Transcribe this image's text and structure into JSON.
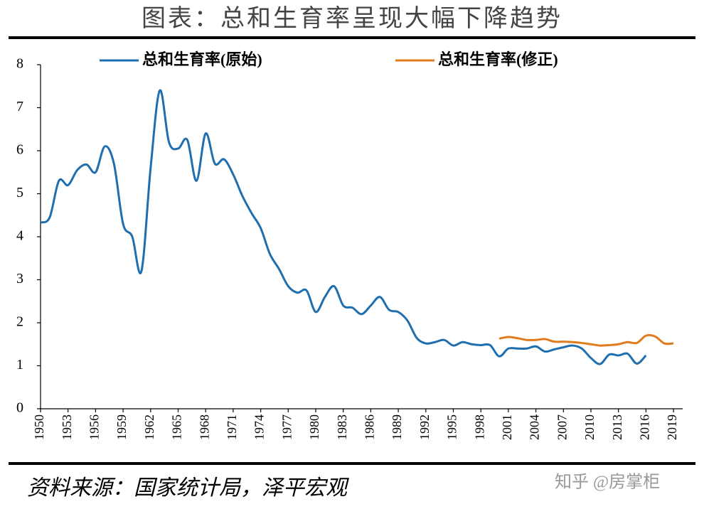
{
  "chart_data": {
    "type": "line",
    "title": "图表：总和生育率呈现大幅下降趋势",
    "source": "资料来源：国家统计局，泽平宏观",
    "watermark": "知乎 @房掌柜",
    "x": [
      1950,
      1951,
      1952,
      1953,
      1954,
      1955,
      1956,
      1957,
      1958,
      1959,
      1960,
      1961,
      1962,
      1963,
      1964,
      1965,
      1966,
      1967,
      1968,
      1969,
      1970,
      1971,
      1972,
      1973,
      1974,
      1975,
      1976,
      1977,
      1978,
      1979,
      1980,
      1981,
      1982,
      1983,
      1984,
      1985,
      1986,
      1987,
      1988,
      1989,
      1990,
      1991,
      1992,
      1993,
      1994,
      1995,
      1996,
      1997,
      1998,
      1999,
      2000,
      2001,
      2002,
      2003,
      2004,
      2005,
      2006,
      2007,
      2008,
      2009,
      2010,
      2011,
      2012,
      2013,
      2014,
      2015,
      2016,
      2017,
      2018,
      2019
    ],
    "series": [
      {
        "name": "总和生育率(原始)",
        "color": "#1f6fb0",
        "values": [
          4.33,
          4.45,
          5.3,
          5.2,
          5.55,
          5.68,
          5.5,
          6.1,
          5.7,
          4.3,
          4.0,
          3.2,
          5.6,
          7.4,
          6.2,
          6.05,
          6.25,
          5.3,
          6.4,
          5.7,
          5.8,
          5.45,
          4.95,
          4.55,
          4.2,
          3.6,
          3.25,
          2.85,
          2.7,
          2.75,
          2.25,
          2.6,
          2.85,
          2.4,
          2.35,
          2.2,
          2.4,
          2.6,
          2.3,
          2.25,
          2.05,
          1.65,
          1.52,
          1.55,
          1.6,
          1.47,
          1.55,
          1.5,
          1.48,
          1.48,
          1.22,
          1.4,
          1.4,
          1.4,
          1.45,
          1.33,
          1.38,
          1.43,
          1.47,
          1.4,
          1.18,
          1.04,
          1.26,
          1.24,
          1.28,
          1.05,
          1.24,
          null,
          null,
          null
        ]
      },
      {
        "name": "总和生育率(修正)",
        "color": "#e07c1e",
        "values": [
          null,
          null,
          null,
          null,
          null,
          null,
          null,
          null,
          null,
          null,
          null,
          null,
          null,
          null,
          null,
          null,
          null,
          null,
          null,
          null,
          null,
          null,
          null,
          null,
          null,
          null,
          null,
          null,
          null,
          null,
          null,
          null,
          null,
          null,
          null,
          null,
          null,
          null,
          null,
          null,
          null,
          null,
          null,
          null,
          null,
          null,
          null,
          null,
          null,
          null,
          1.63,
          1.67,
          1.64,
          1.6,
          1.6,
          1.62,
          1.56,
          1.56,
          1.55,
          1.53,
          1.5,
          1.47,
          1.48,
          1.5,
          1.55,
          1.53,
          1.7,
          1.68,
          1.52,
          1.52
        ]
      }
    ],
    "xlim": [
      1950,
      2020
    ],
    "xticks": [
      1950,
      1953,
      1956,
      1959,
      1962,
      1965,
      1968,
      1971,
      1974,
      1977,
      1980,
      1983,
      1986,
      1989,
      1992,
      1995,
      1998,
      2001,
      2004,
      2007,
      2010,
      2013,
      2016,
      2019
    ],
    "ylim": [
      0,
      8
    ],
    "yticks": [
      0,
      1,
      2,
      3,
      4,
      5,
      6,
      7,
      8
    ],
    "grid": false
  }
}
